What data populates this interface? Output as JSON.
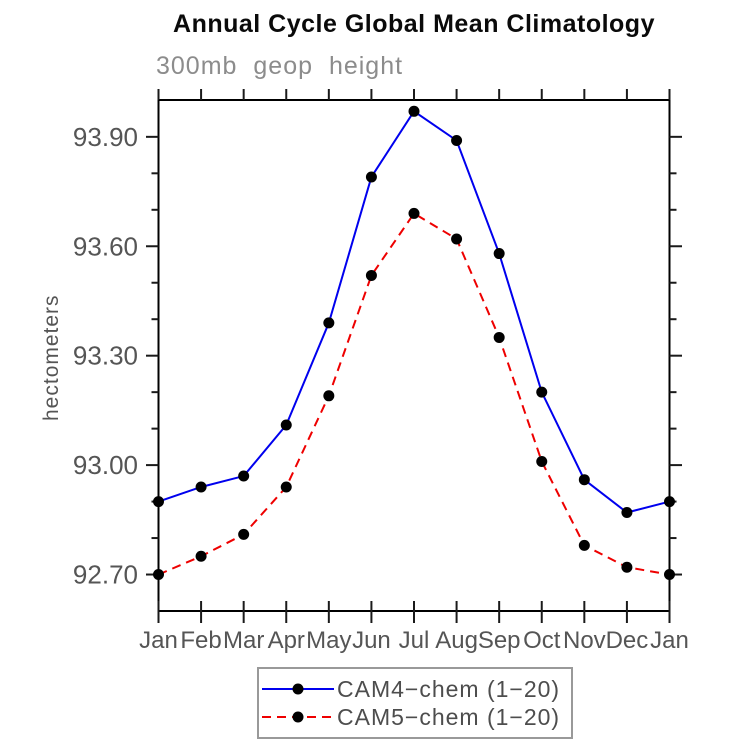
{
  "page": {
    "background": "#ffffff"
  },
  "chart_data": {
    "type": "line",
    "title": "Annual Cycle Global Mean Climatology",
    "subtitle": "300mb geop height",
    "ylabel": "hectometers",
    "xlabel": "",
    "categories": [
      "Jan",
      "Feb",
      "Mar",
      "Apr",
      "May",
      "Jun",
      "Jul",
      "Aug",
      "Sep",
      "Oct",
      "Nov",
      "Dec",
      "Jan"
    ],
    "series": [
      {
        "name": "CAM4−chem (1−20)",
        "color": "#0000ee",
        "line_style": "solid",
        "marker": "filled-circle",
        "values": [
          92.9,
          92.94,
          92.97,
          93.11,
          93.39,
          93.79,
          93.97,
          93.89,
          93.58,
          93.2,
          92.96,
          92.87,
          92.9
        ]
      },
      {
        "name": "CAM5−chem (1−20)",
        "color": "#ee0000",
        "line_style": "dashed",
        "marker": "filled-circle",
        "values": [
          92.7,
          92.75,
          92.81,
          92.94,
          93.19,
          93.52,
          93.69,
          93.62,
          93.35,
          93.01,
          92.78,
          92.72,
          92.7
        ]
      }
    ],
    "y_ticks_major": [
      92.7,
      93.0,
      93.3,
      93.6,
      93.9
    ],
    "y_tick_labels": [
      "92.70",
      "93.00",
      "93.30",
      "93.60",
      "93.90"
    ],
    "y_minor_step": 0.1,
    "ylim": [
      92.6,
      94.001
    ],
    "grid": false,
    "legend_position": "bottom-center",
    "marker_color": "#000000",
    "axis_color": "#000000",
    "tick_label_color": "#555555",
    "legend_text_color": "#4d4d4d",
    "legend_border_color": "#999999"
  }
}
